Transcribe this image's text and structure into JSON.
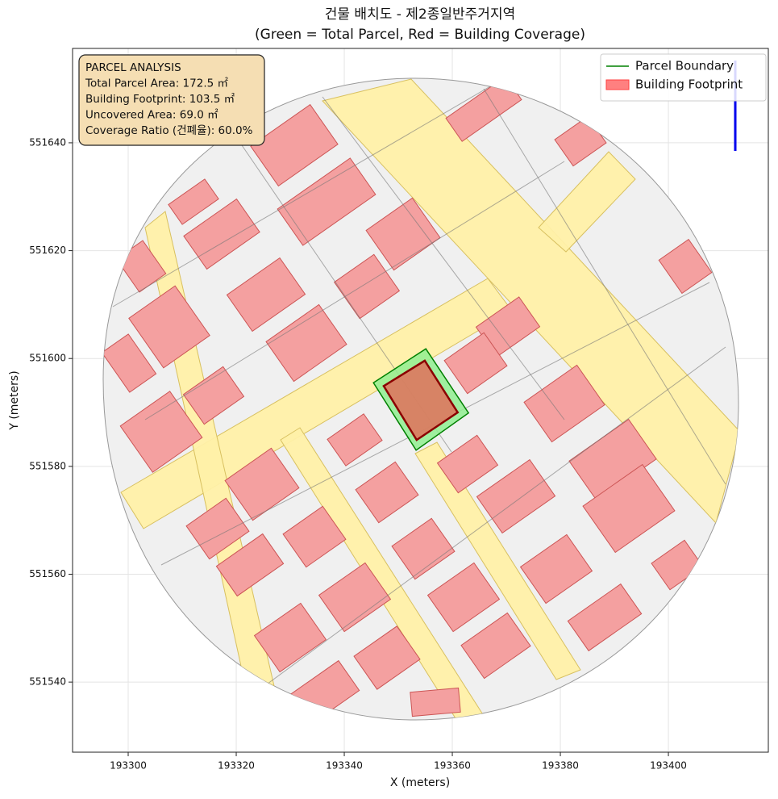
{
  "chart_data": {
    "type": "polygon",
    "title": "건물 배치도 - 제2종일반주거지역",
    "subtitle": "(Green = Total Parcel, Red = Building Coverage)",
    "x_label": "X (meters)",
    "y_label": "Y (meters)",
    "xlim": [
      193289.7,
      193418.5
    ],
    "ylim": [
      551527.0,
      551657.5
    ],
    "xticks": [
      193300,
      193320,
      193340,
      193360,
      193380,
      193400
    ],
    "yticks": [
      551540,
      551560,
      551580,
      551600,
      551620,
      551640
    ],
    "grid": true,
    "legend": "upper right",
    "annotation": [
      "PARCEL ANALYSIS",
      "Total Parcel Area: 172.5 ㎡",
      "Building Footprint: 103.5 ㎡",
      "Uncovered Area: 69.0 ㎡",
      "Coverage Ratio (건폐율): 60.0%"
    ],
    "series": [
      {
        "name": "Parcel Boundary",
        "color": "green",
        "fill": "#90ee90",
        "legend_mark": "line",
        "x": [
          193345.4,
          193355.1,
          193363.0,
          193353.3
        ],
        "y": [
          551595.5,
          551601.8,
          551589.9,
          551583.0
        ]
      },
      {
        "name": "Building Footprint",
        "color": "darkred",
        "fill": "#e0705a",
        "legend_mark": "patch",
        "x": [
          193347.3,
          193354.9,
          193361.0,
          193353.4
        ],
        "y": [
          551594.9,
          551599.6,
          551590.0,
          551584.9
        ]
      }
    ]
  }
}
